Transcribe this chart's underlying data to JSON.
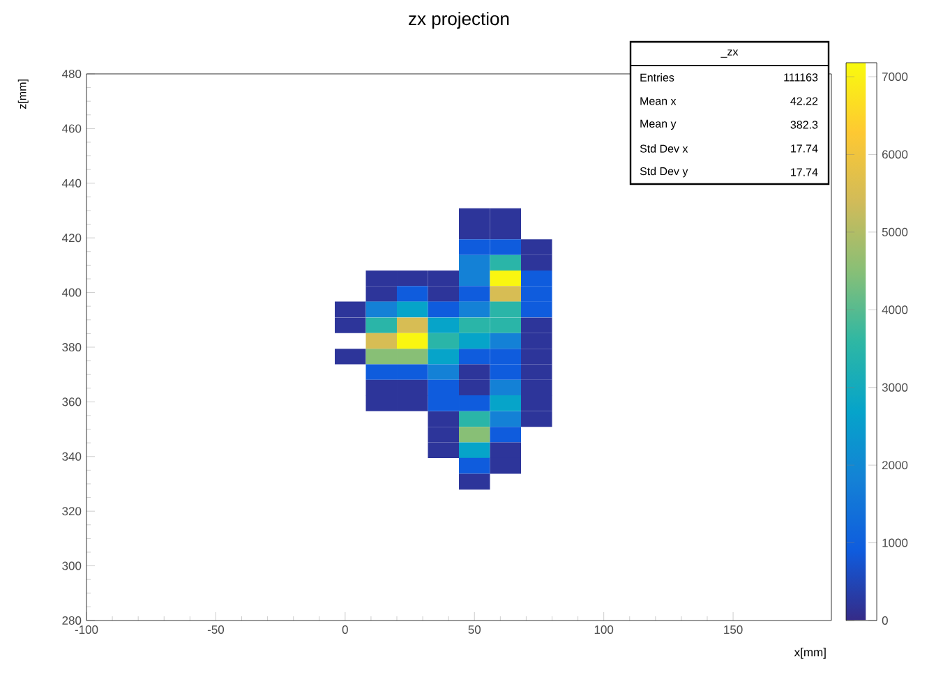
{
  "chart_data": {
    "type": "heatmap",
    "title": "zx projection",
    "xlabel": "x[mm]",
    "ylabel": "z[mm]",
    "x": [
      2,
      14,
      26,
      38,
      50,
      62,
      74
    ],
    "y": [
      428.0,
      422.3,
      416.6,
      410.9,
      405.2,
      399.5,
      393.8,
      388.0,
      382.3,
      376.6,
      370.9,
      365.2,
      359.5,
      353.7,
      348.0,
      342.3,
      336.6,
      330.8
    ],
    "cells": [
      [
        null,
        null,
        null,
        null,
        200,
        200,
        null
      ],
      [
        null,
        null,
        null,
        null,
        200,
        200,
        null
      ],
      [
        null,
        null,
        null,
        null,
        900,
        900,
        200
      ],
      [
        null,
        null,
        null,
        null,
        1800,
        3500,
        200
      ],
      [
        null,
        200,
        200,
        200,
        1800,
        7100,
        900
      ],
      [
        null,
        200,
        900,
        200,
        900,
        5500,
        900
      ],
      [
        200,
        1800,
        2700,
        900,
        1800,
        3500,
        900
      ],
      [
        200,
        3500,
        5500,
        2700,
        3500,
        3500,
        200
      ],
      [
        null,
        5500,
        7100,
        3500,
        2700,
        1800,
        200
      ],
      [
        200,
        4500,
        4500,
        2700,
        900,
        900,
        200
      ],
      [
        null,
        900,
        900,
        1800,
        200,
        900,
        200
      ],
      [
        null,
        200,
        200,
        900,
        200,
        1800,
        200
      ],
      [
        null,
        200,
        200,
        900,
        900,
        2700,
        200
      ],
      [
        null,
        null,
        null,
        200,
        3500,
        1800,
        200
      ],
      [
        null,
        null,
        null,
        200,
        4500,
        900,
        null
      ],
      [
        null,
        null,
        null,
        200,
        2700,
        200,
        null
      ],
      [
        null,
        null,
        null,
        null,
        900,
        200,
        null
      ],
      [
        null,
        null,
        null,
        null,
        200,
        null,
        null
      ]
    ],
    "xlim": [
      -100,
      188
    ],
    "ylim": [
      280,
      480
    ],
    "xticks": [
      -100,
      -50,
      0,
      50,
      100,
      150
    ],
    "yticks": [
      280,
      300,
      320,
      340,
      360,
      380,
      400,
      420,
      440,
      460,
      480
    ],
    "clim": [
      0,
      7180
    ],
    "cticks": [
      0,
      1000,
      2000,
      3000,
      4000,
      5000,
      6000,
      7000
    ],
    "annotations": [
      "_zx",
      "Entries",
      "111163",
      "Mean x",
      "42.22",
      "Mean y",
      "382.3",
      "Std Dev x",
      "17.74",
      "Std Dev y",
      "17.74"
    ]
  }
}
